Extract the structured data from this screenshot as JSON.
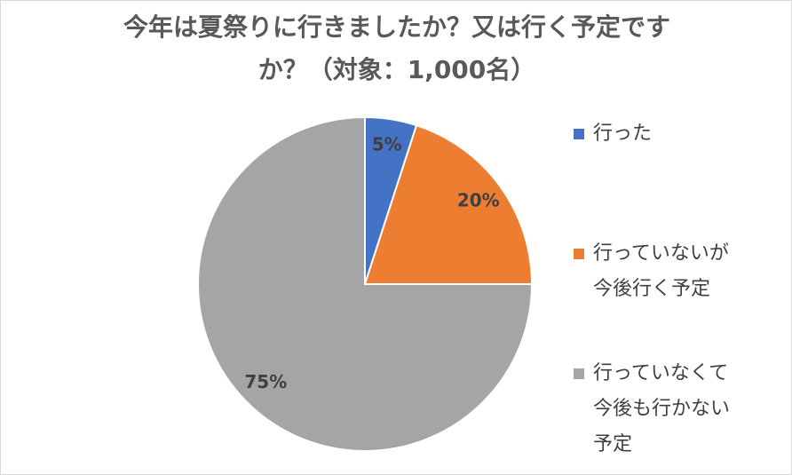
{
  "chart_data": {
    "type": "pie",
    "title": "今年は夏祭りに行きましたか？又は行く予定ですか？（対象：1,000名）",
    "categories": [
      "行った",
      "行っていないが今後行く予定",
      "行っていなくて今後も行かない予定"
    ],
    "values": [
      5,
      20,
      75
    ],
    "value_labels": [
      "5%",
      "20%",
      "75%"
    ],
    "colors": [
      "#4472c4",
      "#ed7d31",
      "#a5a5a5"
    ],
    "legend": "right"
  }
}
